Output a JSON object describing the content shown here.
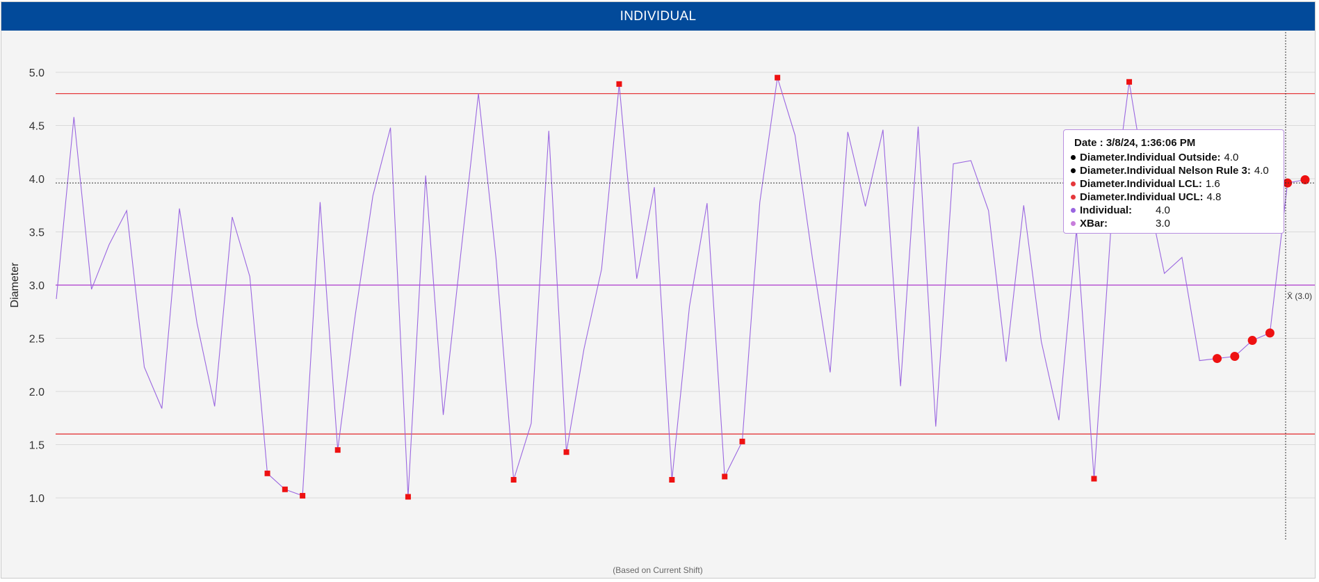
{
  "title": "INDIVIDUAL",
  "footnote": "(Based on Current Shift)",
  "xbar_marker_label": "X̄ (3.0)",
  "colors": {
    "header": "#024a9a",
    "series": "#9a66e0",
    "xbar": "#c77ddb",
    "limit": "#e5383b",
    "violation": "#ee1111"
  },
  "tooltip": {
    "date_label": "Date : 3/8/24, 1:36:06 PM",
    "rows": [
      {
        "label": "Diameter.Individual Outside:",
        "value": "4.0",
        "dot_color": "#000000"
      },
      {
        "label": "Diameter.Individual Nelson Rule 3:",
        "value": "4.0",
        "dot_color": "#000000"
      },
      {
        "label": "Diameter.Individual LCL:",
        "value": "1.6",
        "dot_color": "#e5383b"
      },
      {
        "label": "Diameter.Individual UCL:",
        "value": "4.8",
        "dot_color": "#e5383b"
      },
      {
        "label": "Individual:",
        "value": "4.0",
        "dot_color": "#9a66e0"
      },
      {
        "label": "XBar:",
        "value": "3.0",
        "dot_color": "#c77ddb"
      }
    ]
  },
  "chart_data": {
    "type": "line",
    "title": "INDIVIDUAL",
    "ylabel": "Diameter",
    "xlabel": "",
    "ylim": [
      0.6,
      5.4
    ],
    "yticks": [
      "1.0",
      "1.5",
      "2.0",
      "2.5",
      "3.0",
      "3.5",
      "4.0",
      "4.5",
      "5.0"
    ],
    "grid": true,
    "ucl": 4.8,
    "lcl": 1.6,
    "xbar": 3.0,
    "hover_value": 3.96,
    "series": [
      {
        "name": "Individual",
        "values": [
          2.87,
          4.58,
          2.96,
          3.38,
          3.7,
          2.23,
          1.84,
          3.72,
          2.64,
          1.86,
          3.64,
          3.08,
          1.23,
          1.08,
          1.02,
          3.78,
          1.45,
          2.72,
          3.84,
          4.48,
          1.01,
          4.03,
          1.78,
          3.3,
          4.8,
          3.25,
          1.17,
          1.7,
          4.45,
          1.43,
          2.4,
          3.15,
          4.89,
          3.06,
          3.92,
          1.17,
          2.8,
          3.77,
          1.2,
          1.53,
          3.78,
          4.95,
          4.41,
          3.24,
          2.18,
          4.44,
          3.74,
          4.46,
          2.05,
          4.49,
          1.67,
          4.14,
          4.17,
          3.7,
          2.28,
          3.75,
          2.47,
          1.73,
          3.52,
          1.18,
          3.63,
          4.91,
          3.9,
          3.11,
          3.26,
          2.29,
          2.31,
          2.33,
          2.48,
          2.55,
          3.96,
          3.99
        ]
      }
    ],
    "outside_limit_points": [
      12,
      13,
      14,
      16,
      20,
      26,
      29,
      32,
      35,
      38,
      39,
      41,
      59,
      61
    ],
    "nelson_rule_points": [
      66,
      67,
      68,
      69,
      70,
      71
    ]
  }
}
